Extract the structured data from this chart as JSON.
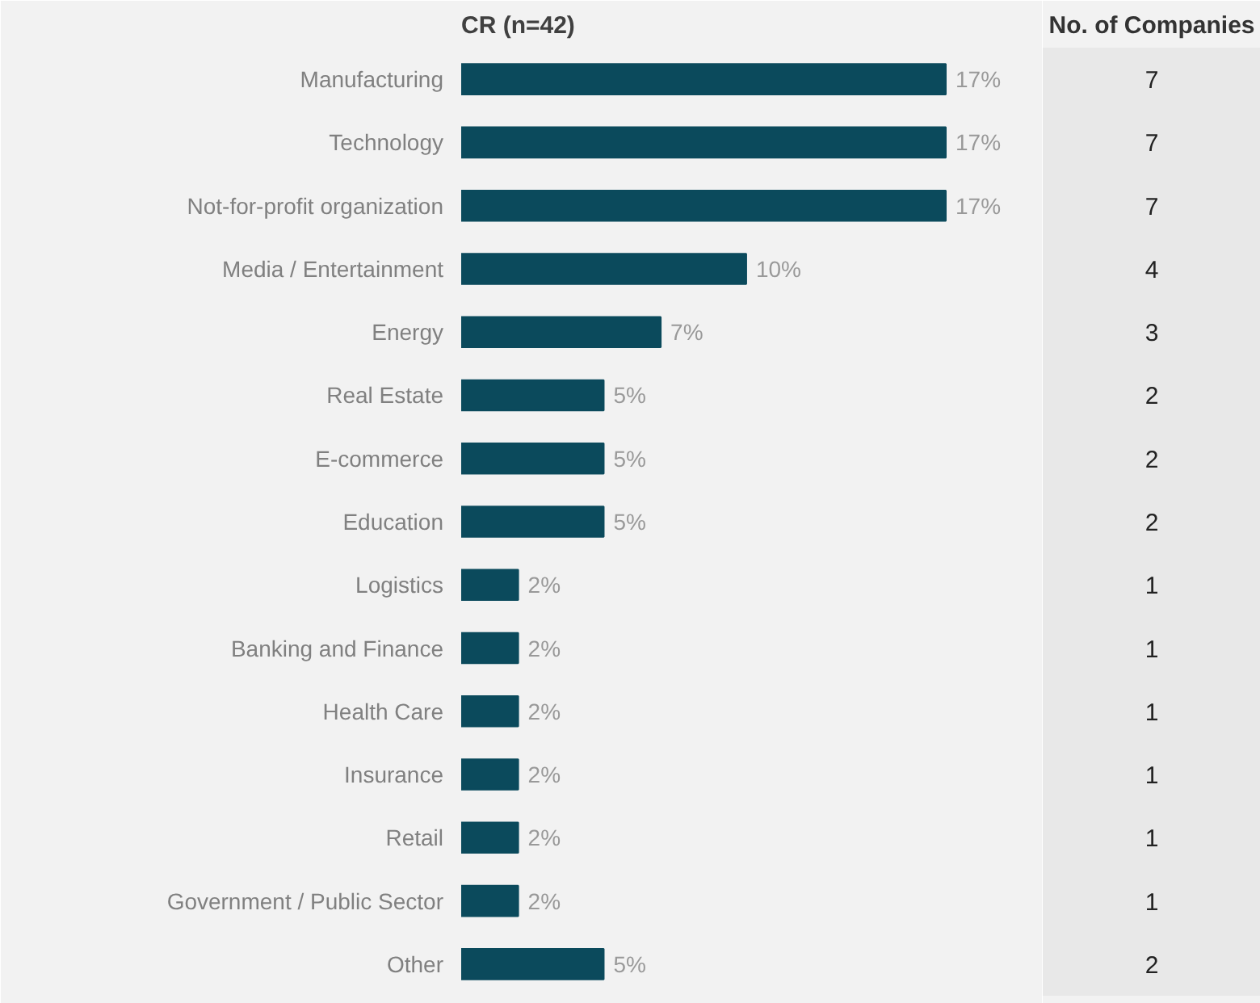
{
  "chart_data": [
    {
      "type": "bar",
      "orientation": "horizontal",
      "title": "CR (n=42)",
      "color": "#0b4a5c",
      "data_labels": true,
      "categories": [
        "Manufacturing",
        "Technology",
        "Not-for-profit organization",
        "Media / Entertainment",
        "Energy",
        "Real Estate",
        "E-commerce",
        "Education",
        "Logistics",
        "Banking and Finance",
        "Health Care",
        "Insurance",
        "Retail",
        "Government / Public Sector",
        "Other"
      ],
      "values": [
        17,
        17,
        17,
        10,
        7,
        5,
        5,
        5,
        2,
        2,
        2,
        2,
        2,
        2,
        5
      ],
      "value_labels": [
        "17%",
        "17%",
        "17%",
        "10%",
        "7%",
        "5%",
        "5%",
        "5%",
        "2%",
        "2%",
        "2%",
        "2%",
        "2%",
        "2%",
        "5%"
      ]
    },
    {
      "type": "other",
      "title": "No. of Companies",
      "data_labels": true,
      "categories": [
        null,
        null,
        null,
        null,
        null,
        null,
        null,
        null,
        null,
        null,
        null,
        null,
        null,
        null,
        null
      ],
      "values": [
        7,
        7,
        7,
        4,
        3,
        2,
        2,
        2,
        1,
        1,
        1,
        1,
        1,
        1,
        2
      ]
    }
  ]
}
